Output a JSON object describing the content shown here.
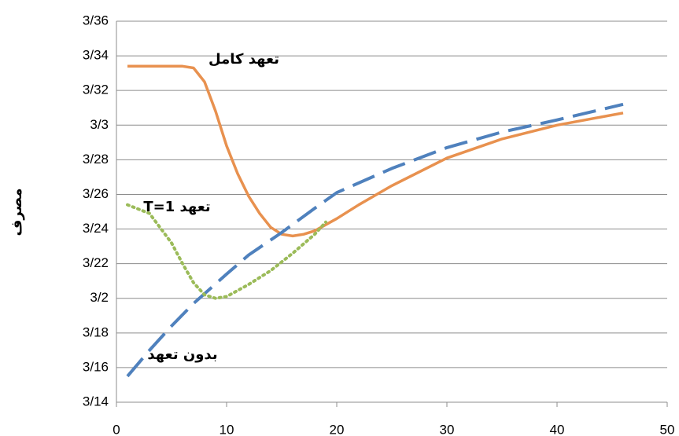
{
  "chart_data": {
    "type": "line",
    "y_label": "مصرف",
    "xlim": [
      0,
      50
    ],
    "xticks": [
      0,
      10,
      20,
      30,
      40,
      50
    ],
    "ylim": [
      3.14,
      3.36
    ],
    "yticks": [
      {
        "value": 3.14,
        "label": "3/14"
      },
      {
        "value": 3.16,
        "label": "3/16"
      },
      {
        "value": 3.18,
        "label": "3/18"
      },
      {
        "value": 3.2,
        "label": "3/2"
      },
      {
        "value": 3.22,
        "label": "3/22"
      },
      {
        "value": 3.24,
        "label": "3/24"
      },
      {
        "value": 3.26,
        "label": "3/26"
      },
      {
        "value": 3.28,
        "label": "3/28"
      },
      {
        "value": 3.3,
        "label": "3/3"
      },
      {
        "value": 3.32,
        "label": "3/32"
      },
      {
        "value": 3.34,
        "label": "3/34"
      },
      {
        "value": 3.36,
        "label": "3/36"
      }
    ],
    "grid": true,
    "series": [
      {
        "name": "تعهد کامل",
        "color": "#e8914f",
        "dash": "solid",
        "x": [
          1,
          3,
          5,
          6,
          7,
          8,
          9,
          10,
          11,
          12,
          13,
          14,
          15,
          16,
          17,
          18,
          20,
          22,
          25,
          30,
          35,
          40,
          46
        ],
        "values": [
          3.334,
          3.334,
          3.334,
          3.334,
          3.333,
          3.325,
          3.308,
          3.288,
          3.272,
          3.259,
          3.249,
          3.241,
          3.237,
          3.236,
          3.237,
          3.239,
          3.246,
          3.254,
          3.265,
          3.281,
          3.292,
          3.3,
          3.307
        ]
      },
      {
        "name": "تعهد T=1",
        "color": "#4f81bd",
        "dash": "dashed",
        "x": [
          1,
          3,
          5,
          7,
          10,
          12,
          15,
          18,
          20,
          25,
          30,
          35,
          40,
          46
        ],
        "values": [
          3.155,
          3.17,
          3.184,
          3.197,
          3.214,
          3.225,
          3.238,
          3.252,
          3.261,
          3.275,
          3.287,
          3.296,
          3.303,
          3.312
        ]
      },
      {
        "name": "بدون تعهد",
        "color": "#9bbb59",
        "dash": "dotted",
        "x": [
          1,
          3,
          5,
          6,
          7,
          8,
          9,
          10,
          12,
          14,
          16,
          18,
          19
        ],
        "values": [
          3.254,
          3.249,
          3.232,
          3.22,
          3.209,
          3.202,
          3.2,
          3.201,
          3.208,
          3.216,
          3.226,
          3.237,
          3.244
        ]
      }
    ]
  }
}
